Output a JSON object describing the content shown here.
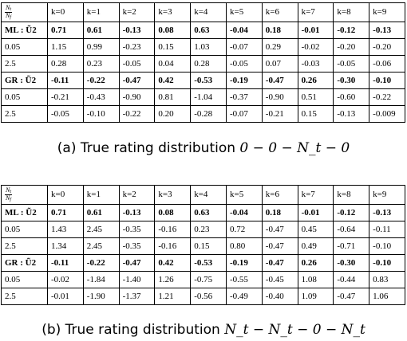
{
  "corner_header": {
    "numerator": "N",
    "numerator_sub": "t",
    "denominator": "N",
    "denominator_sub": "f"
  },
  "columns": [
    "k=0",
    "k=1",
    "k=2",
    "k=3",
    "k=4",
    "k=5",
    "k=6",
    "k=7",
    "k=8",
    "k=9"
  ],
  "tables": [
    {
      "caption_prefix": "(a) True rating distribution",
      "caption_math": "0 − 0 − N_t − 0",
      "rows": [
        {
          "label": "ML : Ũ2",
          "bold": true,
          "values": [
            "0.71",
            "0.61",
            "-0.13",
            "0.08",
            "0.63",
            "-0.04",
            "0.18",
            "-0.01",
            "-0.12",
            "-0.13"
          ]
        },
        {
          "label": "0.05",
          "bold": false,
          "values": [
            "1.15",
            "0.99",
            "-0.23",
            "0.15",
            "1.03",
            "-0.07",
            "0.29",
            "-0.02",
            "-0.20",
            "-0.20"
          ]
        },
        {
          "label": "2.5",
          "bold": false,
          "values": [
            "0.28",
            "0.23",
            "-0.05",
            "0.04",
            "0.28",
            "-0.05",
            "0.07",
            "-0.03",
            "-0.05",
            "-0.06"
          ]
        },
        {
          "label": "GR : Ũ2",
          "bold": true,
          "values": [
            "-0.11",
            "-0.22",
            "-0.47",
            "0.42",
            "-0.53",
            "-0.19",
            "-0.47",
            "0.26",
            "-0.30",
            "-0.10"
          ]
        },
        {
          "label": "0.05",
          "bold": false,
          "values": [
            "-0.21",
            "-0.43",
            "-0.90",
            "0.81",
            "-1.04",
            "-0.37",
            "-0.90",
            "0.51",
            "-0.60",
            "-0.22"
          ]
        },
        {
          "label": "2.5",
          "bold": false,
          "values": [
            "-0.05",
            "-0.10",
            "-0.22",
            "0.20",
            "-0.28",
            "-0.07",
            "-0.21",
            "0.15",
            "-0.13",
            "-0.009"
          ]
        }
      ]
    },
    {
      "caption_prefix": "(b) True rating distribution",
      "caption_math": "N_t − N_t − 0 − N_t",
      "rows": [
        {
          "label": "ML : Ũ2",
          "bold": true,
          "values": [
            "0.71",
            "0.61",
            "-0.13",
            "0.08",
            "0.63",
            "-0.04",
            "0.18",
            "-0.01",
            "-0.12",
            "-0.13"
          ]
        },
        {
          "label": "0.05",
          "bold": false,
          "values": [
            "1.43",
            "2.45",
            "-0.35",
            "-0.16",
            "0.23",
            "0.72",
            "-0.47",
            "0.45",
            "-0.64",
            "-0.11"
          ]
        },
        {
          "label": "2.5",
          "bold": false,
          "values": [
            "1.34",
            "2.45",
            "-0.35",
            "-0.16",
            "0.15",
            "0.80",
            "-0.47",
            "0.49",
            "-0.71",
            "-0.10"
          ]
        },
        {
          "label": "GR : Ũ2",
          "bold": true,
          "values": [
            "-0.11",
            "-0.22",
            "-0.47",
            "0.42",
            "-0.53",
            "-0.19",
            "-0.47",
            "0.26",
            "-0.30",
            "-0.10"
          ]
        },
        {
          "label": "0.05",
          "bold": false,
          "values": [
            "-0.02",
            "-1.84",
            "-1.40",
            "1.26",
            "-0.75",
            "-0.55",
            "-0.45",
            "1.08",
            "-0.44",
            "0.83"
          ]
        },
        {
          "label": "2.5",
          "bold": false,
          "values": [
            "-0.01",
            "-1.90",
            "-1.37",
            "1.21",
            "-0.56",
            "-0.49",
            "-0.40",
            "1.09",
            "-0.47",
            "1.06"
          ]
        }
      ]
    }
  ]
}
